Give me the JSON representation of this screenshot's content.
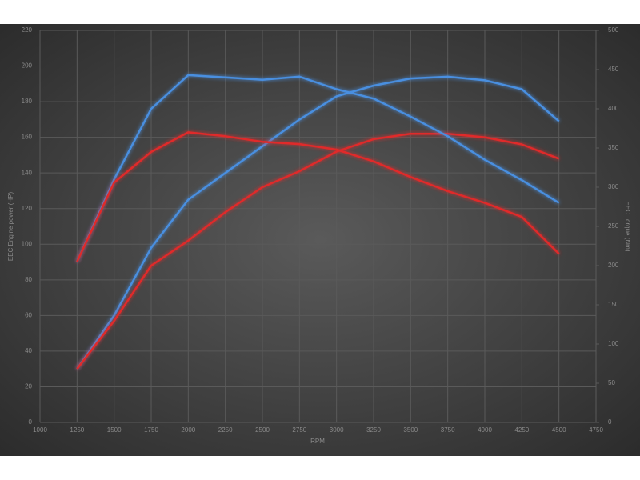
{
  "chart_data": {
    "type": "line",
    "x_label": "RPM",
    "y_label": "EEC Engine power (HP)",
    "y2_label": "EEC Torque (Nm)",
    "x": [
      1250,
      1500,
      1750,
      2000,
      2250,
      2500,
      2750,
      3000,
      3250,
      3500,
      3750,
      4000,
      4250,
      4500
    ],
    "series": [
      {
        "color": "#4a8fe0",
        "values": [
          30,
          60,
          98,
          125,
          140,
          155,
          170,
          183,
          189,
          193,
          194,
          192,
          187,
          169
        ]
      },
      {
        "color": "#e02a2a",
        "values": [
          30,
          57,
          88,
          102,
          118,
          132,
          141,
          152,
          159,
          162,
          162,
          160,
          156,
          148
        ]
      },
      {
        "color": "#4a8fe0",
        "axis": "y2",
        "values": [
          205,
          310,
          400,
          443,
          440,
          437,
          441,
          425,
          413,
          390,
          365,
          335,
          309,
          280
        ]
      },
      {
        "color": "#e02a2a",
        "axis": "y2",
        "values": [
          205,
          306,
          345,
          370,
          365,
          358,
          355,
          348,
          333,
          313,
          295,
          280,
          262,
          215
        ]
      }
    ],
    "xlim": [
      1000,
      4750
    ],
    "xticks": [
      1000,
      1250,
      1500,
      1750,
      2000,
      2250,
      2500,
      2750,
      3000,
      3250,
      3500,
      3750,
      4000,
      4250,
      4500,
      4750
    ],
    "ylim": [
      0,
      220
    ],
    "yticks": [
      0,
      20,
      40,
      60,
      80,
      100,
      120,
      140,
      160,
      180,
      200,
      220
    ],
    "y2lim": [
      0,
      500
    ],
    "y2ticks": [
      0,
      50,
      100,
      150,
      200,
      250,
      300,
      350,
      400,
      450,
      500
    ],
    "grid": true
  }
}
